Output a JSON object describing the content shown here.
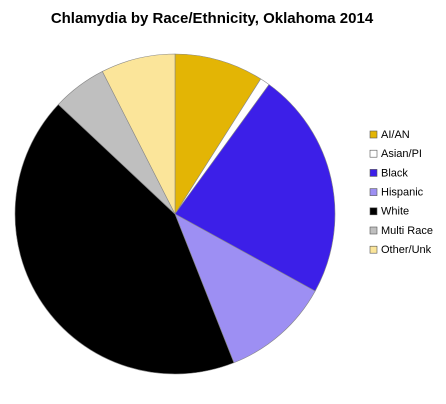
{
  "chart_data": {
    "type": "pie",
    "title": "Chlamydia by Race/Ethnicity,  Oklahoma 2014",
    "categories": [
      "AI/AN",
      "Asian/PI",
      "Black",
      "Hispanic",
      "White",
      "Multi Race",
      "Other/Unk"
    ],
    "values": [
      9,
      1,
      23,
      11,
      43,
      5.5,
      7.5
    ],
    "colors": [
      "#e3b505",
      "#ffffff",
      "#3c1fe8",
      "#9d8ff3",
      "#000000",
      "#bfbfbf",
      "#fbe59a"
    ],
    "legend": "right"
  }
}
